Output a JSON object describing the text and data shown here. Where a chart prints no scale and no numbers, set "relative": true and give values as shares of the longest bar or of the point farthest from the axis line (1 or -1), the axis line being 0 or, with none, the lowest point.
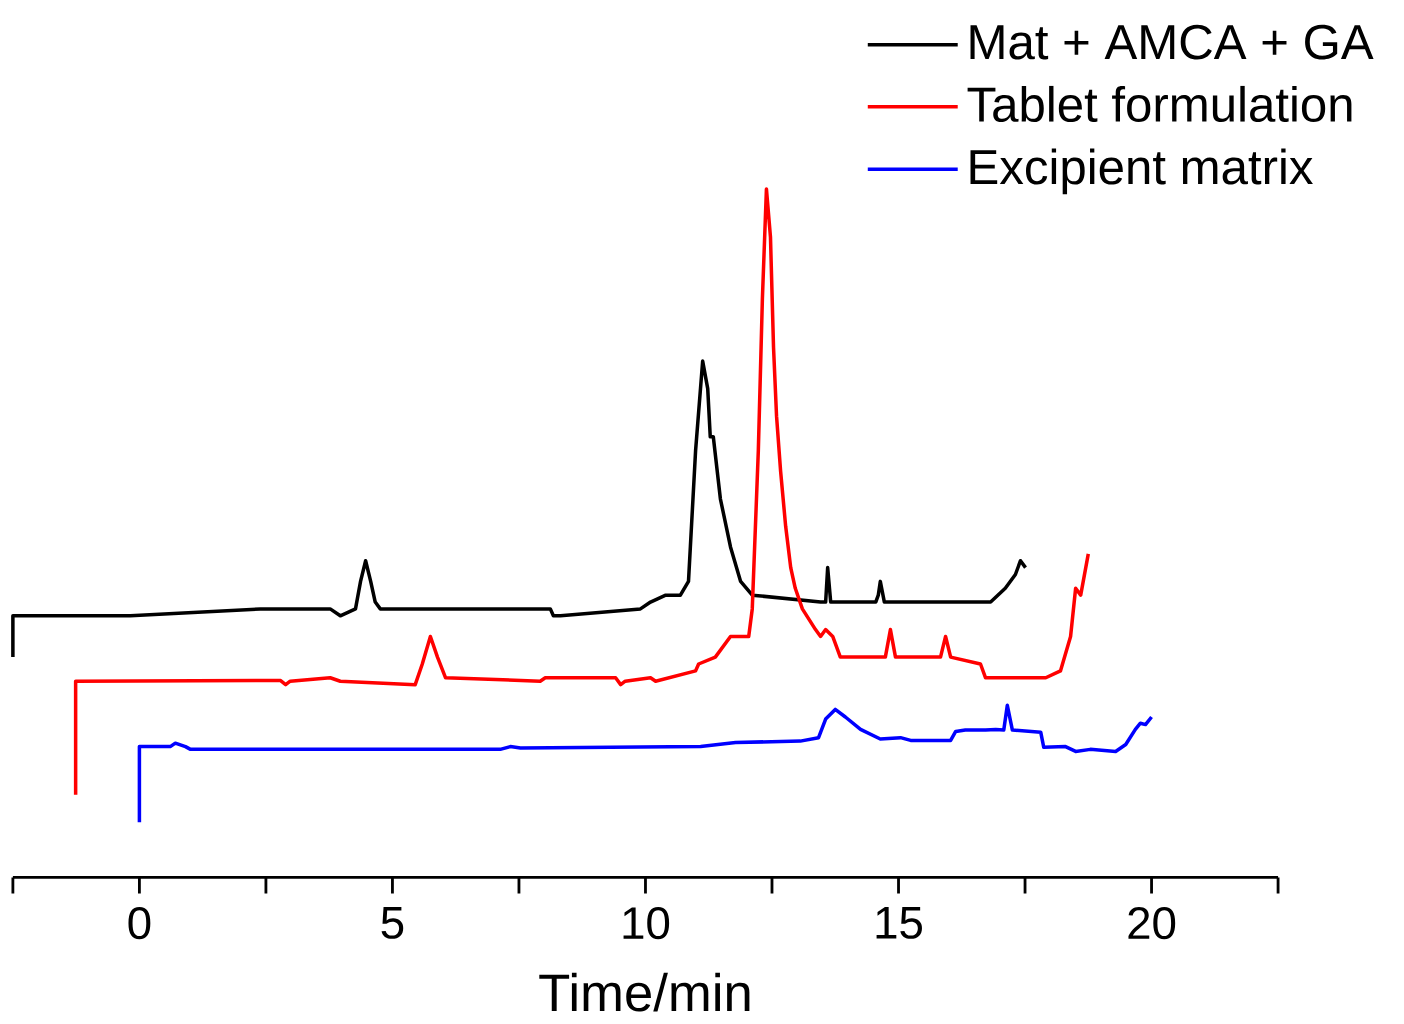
{
  "chart_data": {
    "type": "line",
    "relative": true,
    "xlabel": "Time/min",
    "legend": "top right",
    "xlim": [
      -2.5,
      22.5
    ],
    "xticks": [
      {
        "value": -2.5,
        "label": null
      },
      0,
      {
        "value": 2.5,
        "label": null
      },
      5,
      {
        "value": 7.5,
        "label": null
      },
      10,
      {
        "value": 12.5,
        "label": null
      },
      15,
      {
        "value": 17.5,
        "label": null
      },
      20,
      {
        "value": 22.5,
        "label": null
      }
    ],
    "series": [
      {
        "name": "Mat + AMCA + GA",
        "color": "#000000",
        "x": [
          -2.5,
          -2.5,
          -0.28,
          -0.18,
          2.39,
          3.77,
          3.97,
          4.27,
          4.37,
          4.47,
          4.57,
          4.66,
          4.76,
          6.25,
          6.35,
          8.12,
          8.18,
          8.32,
          9.9,
          10.1,
          10.4,
          10.69,
          10.85,
          10.99,
          11.13,
          11.23,
          11.28,
          11.34,
          11.48,
          11.68,
          11.88,
          12.11,
          13.46,
          13.56,
          13.6,
          13.66,
          14.55,
          14.6,
          14.64,
          14.72,
          16.82,
          17.11,
          17.31,
          17.41,
          17.51
        ],
        "values": [
          0.32,
          0.38,
          0.38,
          0.38,
          0.39,
          0.39,
          0.38,
          0.39,
          0.43,
          0.46,
          0.43,
          0.4,
          0.39,
          0.39,
          0.39,
          0.39,
          0.38,
          0.38,
          0.39,
          0.4,
          0.41,
          0.41,
          0.43,
          0.62,
          0.75,
          0.71,
          0.64,
          0.64,
          0.55,
          0.48,
          0.43,
          0.41,
          0.4,
          0.4,
          0.45,
          0.4,
          0.4,
          0.41,
          0.43,
          0.4,
          0.4,
          0.42,
          0.44,
          0.46,
          0.45
        ]
      },
      {
        "name": "Tablet formulation",
        "color": "#ff0000",
        "x": [
          -1.26,
          -1.26,
          2.79,
          2.89,
          2.98,
          3.77,
          3.97,
          5.45,
          5.59,
          5.75,
          5.89,
          6.05,
          7.92,
          8.02,
          9.41,
          9.51,
          9.6,
          10.1,
          10.2,
          10.99,
          11.05,
          11.38,
          11.68,
          11.78,
          11.88,
          12.04,
          12.11,
          12.23,
          12.31,
          12.39,
          12.47,
          12.53,
          12.59,
          12.67,
          12.77,
          12.87,
          12.96,
          13.1,
          13.36,
          13.46,
          13.56,
          13.7,
          13.85,
          14.05,
          14.74,
          14.84,
          14.94,
          15.83,
          15.93,
          16.03,
          16.62,
          16.72,
          17.91,
          18.2,
          18.4,
          18.5,
          18.6,
          18.75
        ],
        "values": [
          0.12,
          0.285,
          0.286,
          0.28,
          0.285,
          0.29,
          0.285,
          0.28,
          0.31,
          0.35,
          0.32,
          0.29,
          0.285,
          0.29,
          0.29,
          0.28,
          0.285,
          0.29,
          0.285,
          0.3,
          0.31,
          0.32,
          0.35,
          0.35,
          0.35,
          0.35,
          0.39,
          0.62,
          0.84,
          1.0,
          0.93,
          0.77,
          0.67,
          0.59,
          0.51,
          0.45,
          0.42,
          0.39,
          0.36,
          0.35,
          0.36,
          0.35,
          0.32,
          0.32,
          0.32,
          0.36,
          0.32,
          0.32,
          0.35,
          0.32,
          0.31,
          0.29,
          0.29,
          0.3,
          0.35,
          0.42,
          0.41,
          0.47
        ]
      },
      {
        "name": "Excipient matrix",
        "color": "#0000ff",
        "x": [
          0,
          0,
          0.61,
          0.71,
          0.91,
          1.01,
          7.13,
          7.33,
          7.53,
          11.09,
          11.78,
          13.06,
          13.42,
          13.56,
          13.75,
          13.95,
          14.25,
          14.64,
          15.04,
          15.24,
          16.03,
          16.13,
          16.32,
          16.72,
          16.92,
          17.08,
          17.15,
          17.25,
          17.81,
          17.87,
          18.3,
          18.5,
          18.79,
          19.29,
          19.49,
          19.68,
          19.78,
          19.88,
          20
        ],
        "values": [
          0.08,
          0.19,
          0.19,
          0.195,
          0.19,
          0.186,
          0.186,
          0.19,
          0.188,
          0.19,
          0.196,
          0.198,
          0.203,
          0.23,
          0.244,
          0.233,
          0.215,
          0.201,
          0.203,
          0.199,
          0.199,
          0.212,
          0.214,
          0.214,
          0.215,
          0.214,
          0.25,
          0.214,
          0.211,
          0.189,
          0.19,
          0.183,
          0.186,
          0.183,
          0.193,
          0.215,
          0.224,
          0.222,
          0.233
        ]
      }
    ]
  }
}
